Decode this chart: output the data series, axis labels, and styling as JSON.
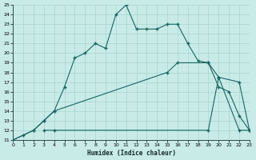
{
  "xlabel": "Humidex (Indice chaleur)",
  "bg_color": "#c8ebe8",
  "grid_color": "#a8d4d0",
  "line_color": "#1a6460",
  "xlim": [
    0,
    23
  ],
  "ylim": [
    11,
    25
  ],
  "xticks": [
    0,
    1,
    2,
    3,
    4,
    5,
    6,
    7,
    8,
    9,
    10,
    11,
    12,
    13,
    14,
    15,
    16,
    17,
    18,
    19,
    20,
    21,
    22,
    23
  ],
  "yticks": [
    11,
    12,
    13,
    14,
    15,
    16,
    17,
    18,
    19,
    20,
    21,
    22,
    23,
    24,
    25
  ],
  "curve1_x": [
    0,
    1,
    2,
    3,
    4,
    5,
    6,
    7,
    8,
    9,
    10,
    11,
    12,
    13,
    14,
    15,
    16,
    17,
    18,
    19,
    20,
    21,
    22,
    23
  ],
  "curve1_y": [
    11,
    11.5,
    12,
    13,
    14,
    16.5,
    19.5,
    20,
    21,
    20.5,
    24,
    25,
    22.5,
    22.5,
    22.5,
    23,
    23,
    21,
    19.2,
    19,
    16.5,
    16,
    13.5,
    12
  ],
  "curve2_x": [
    0,
    2,
    3,
    4,
    15,
    16,
    19,
    20,
    22,
    23
  ],
  "curve2_y": [
    11,
    12,
    13,
    14,
    18,
    19,
    19,
    17.5,
    12,
    12
  ],
  "curve3_x": [
    3,
    4,
    19,
    20,
    22,
    23
  ],
  "curve3_y": [
    12,
    12,
    12,
    17.5,
    17,
    12
  ]
}
